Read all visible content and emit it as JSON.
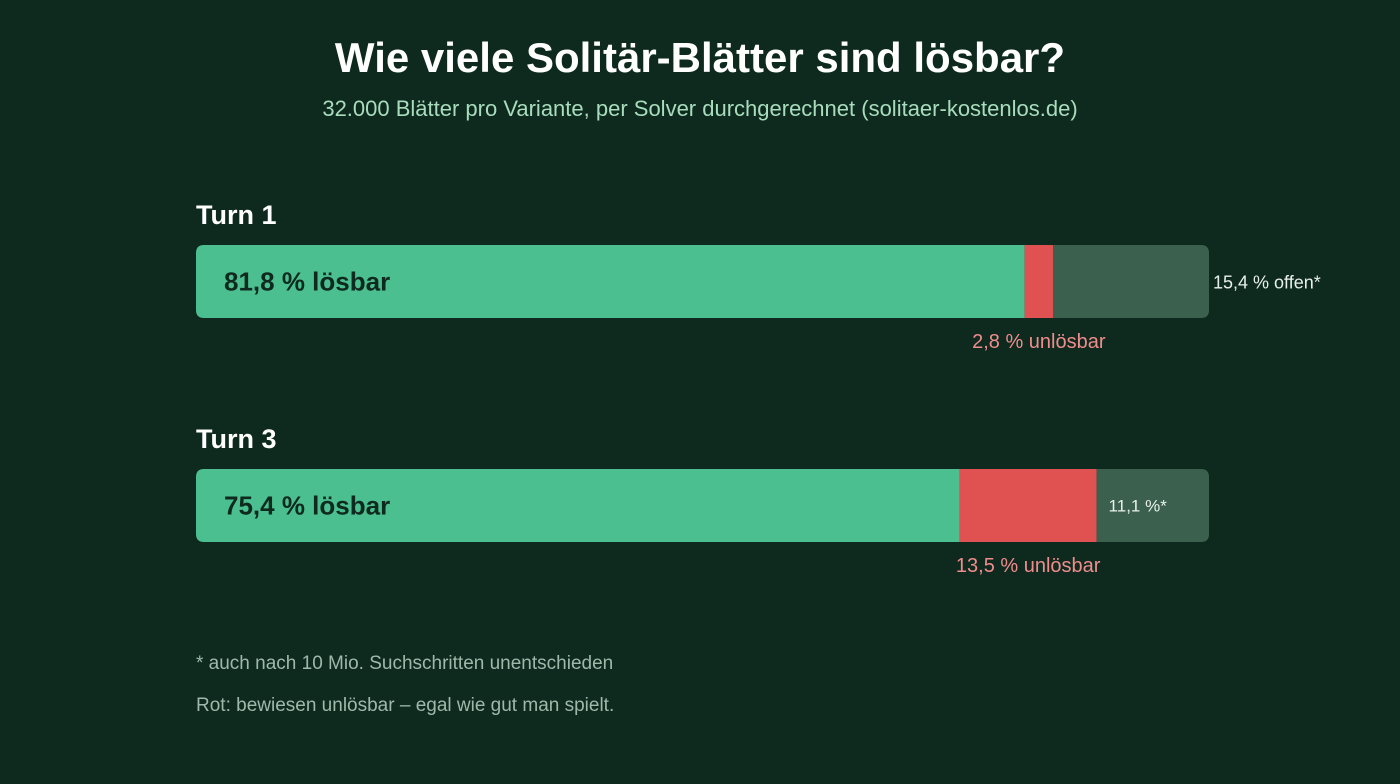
{
  "header": {
    "title": "Wie viele Solitär-Blätter sind lösbar?",
    "subtitle": "32.000 Blätter pro Variante, per Solver durchgerechnet (solitaer-kostenlos.de)"
  },
  "chart_data": {
    "type": "bar",
    "orientation": "horizontal",
    "stacked": true,
    "unit": "%",
    "xlim": [
      0,
      100
    ],
    "grid": false,
    "legend": "none",
    "categories": [
      "Turn 1",
      "Turn 3"
    ],
    "series": [
      {
        "key": "solvable",
        "values": [
          81.8,
          75.4
        ],
        "labels": [
          "81,8 % lösbar",
          "75,4 % lösbar"
        ],
        "color": "#4bbf8f"
      },
      {
        "key": "unsolvable",
        "values": [
          2.8,
          13.5
        ],
        "labels": [
          "2,8 % unlösbar",
          "13,5 % unlösbar"
        ],
        "color": "#e05252"
      },
      {
        "key": "open",
        "values": [
          15.4,
          11.1
        ],
        "labels": [
          "15,4 % offen*",
          "11,1 %*"
        ],
        "color": "#3b614e"
      }
    ]
  },
  "colors": {
    "background": "#0e2a1f",
    "title": "#ffffff",
    "subtitle": "#a8dcbc",
    "solvable_label": "#0e2a1f",
    "unsolvable_label": "#f08c8c",
    "open_label": "#e8f0ec",
    "footnote": "#9fb8aa"
  },
  "footnotes": {
    "asterisk": "* auch nach 10 Mio. Suchschritten unentschieden",
    "red": "Rot: bewiesen unlösbar – egal wie gut man spielt."
  }
}
